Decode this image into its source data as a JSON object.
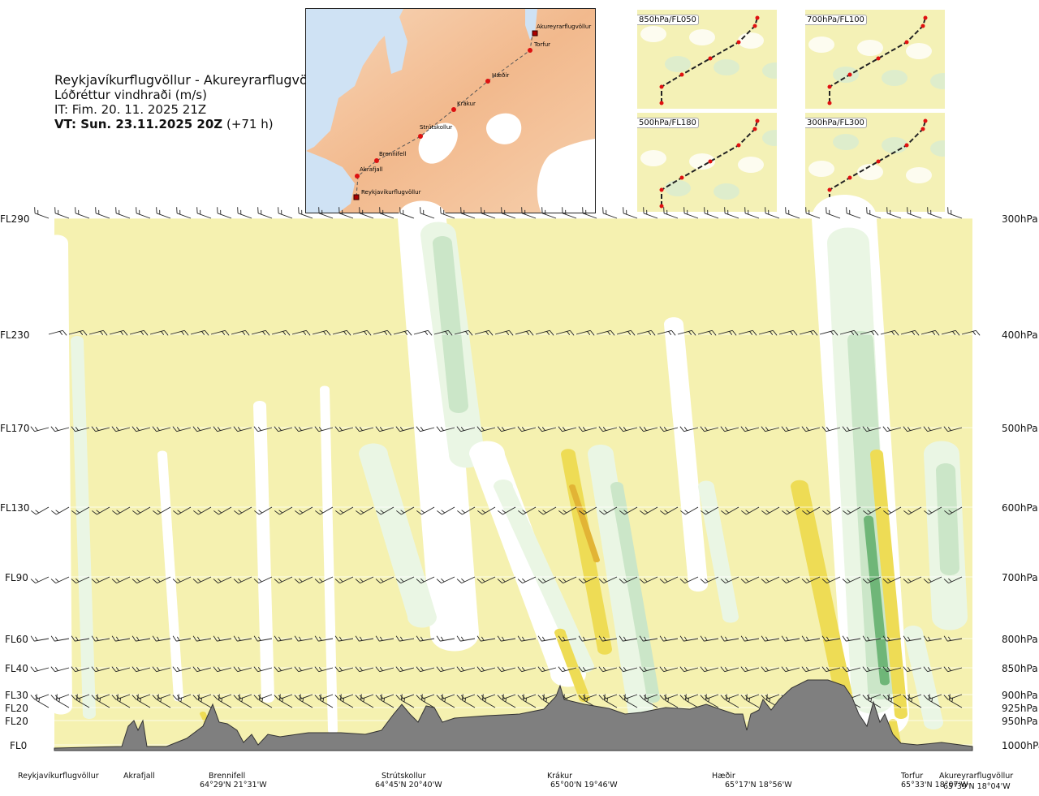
{
  "header": {
    "route": "Reykjavíkurflugvöllur - Akureyrarflugvöllur",
    "parameter": "Lóðréttur vindhraði (m/s)",
    "issue_time": "IT: Fim. 20. 11. 2025 21Z",
    "valid_time_bold": "VT: Sun. 23.11.2025 20Z",
    "valid_time_offset": "(+71 h)"
  },
  "map": {
    "waypoints": [
      "Akureyrarflugvöllur",
      "Torfur",
      "Hæðir",
      "Krákur",
      "Strútskollur",
      "Brennifell",
      "Akrafjall",
      "Reykjavíkurflugvöllur"
    ]
  },
  "mini_maps": [
    {
      "label": "850hPa/FL050"
    },
    {
      "label": "700hPa/FL100"
    },
    {
      "label": "500hPa/FL180"
    },
    {
      "label": "300hPa/FL300"
    }
  ],
  "chart_data": {
    "type": "heatmap",
    "title": "Reykjavíkurflugvöllur - Akureyrarflugvöllur",
    "quantity": "Lóðréttur vindhraði (m/s)",
    "levels": [
      {
        "fl": "FL290",
        "hpa": "300hPa"
      },
      {
        "fl": "FL230",
        "hpa": "400hPa"
      },
      {
        "fl": "FL170",
        "hpa": "500hPa"
      },
      {
        "fl": "FL130",
        "hpa": "600hPa"
      },
      {
        "fl": "FL90",
        "hpa": "700hPa"
      },
      {
        "fl": "FL60",
        "hpa": "800hPa"
      },
      {
        "fl": "FL40",
        "hpa": "850hPa"
      },
      {
        "fl": "FL30",
        "hpa": "900hPa"
      },
      {
        "fl": "FL20",
        "hpa": "925hPa"
      },
      {
        "fl": "FL20",
        "hpa": "950hPa"
      },
      {
        "fl": "FL0",
        "hpa": "1000hPa"
      }
    ],
    "locations": [
      {
        "name": "Reykjavíkurflugvöllur",
        "coord": ""
      },
      {
        "name": "Akrafjall",
        "coord": ""
      },
      {
        "name": "Brennifell",
        "coord": "64°29'N 21°31'W"
      },
      {
        "name": "Strútskollur",
        "coord": "64°45'N 20°40'W"
      },
      {
        "name": "Krákur",
        "coord": "65°00'N 19°46'W"
      },
      {
        "name": "Hæðir",
        "coord": "65°17'N 18°56'W"
      },
      {
        "name": "Torfur",
        "coord": "65°33'N 18°07'W"
      },
      {
        "name": "Akureyrarflugvöllur",
        "coord": "65°39'N 18°04'W"
      }
    ],
    "colors": {
      "downdraft_weak": "#eaf6e4",
      "downdraft_mid": "#cbe6c8",
      "downdraft_strong": "#a4d2a6",
      "downdraft_max": "#6fb678",
      "neutral": "#ffffff",
      "updraft_weak": "#f5f1b0",
      "updraft_mid": "#f3e7a0",
      "updraft_strong": "#eedc55",
      "updraft_max": "#e2b435",
      "terrain": "#7f7f7f"
    }
  }
}
